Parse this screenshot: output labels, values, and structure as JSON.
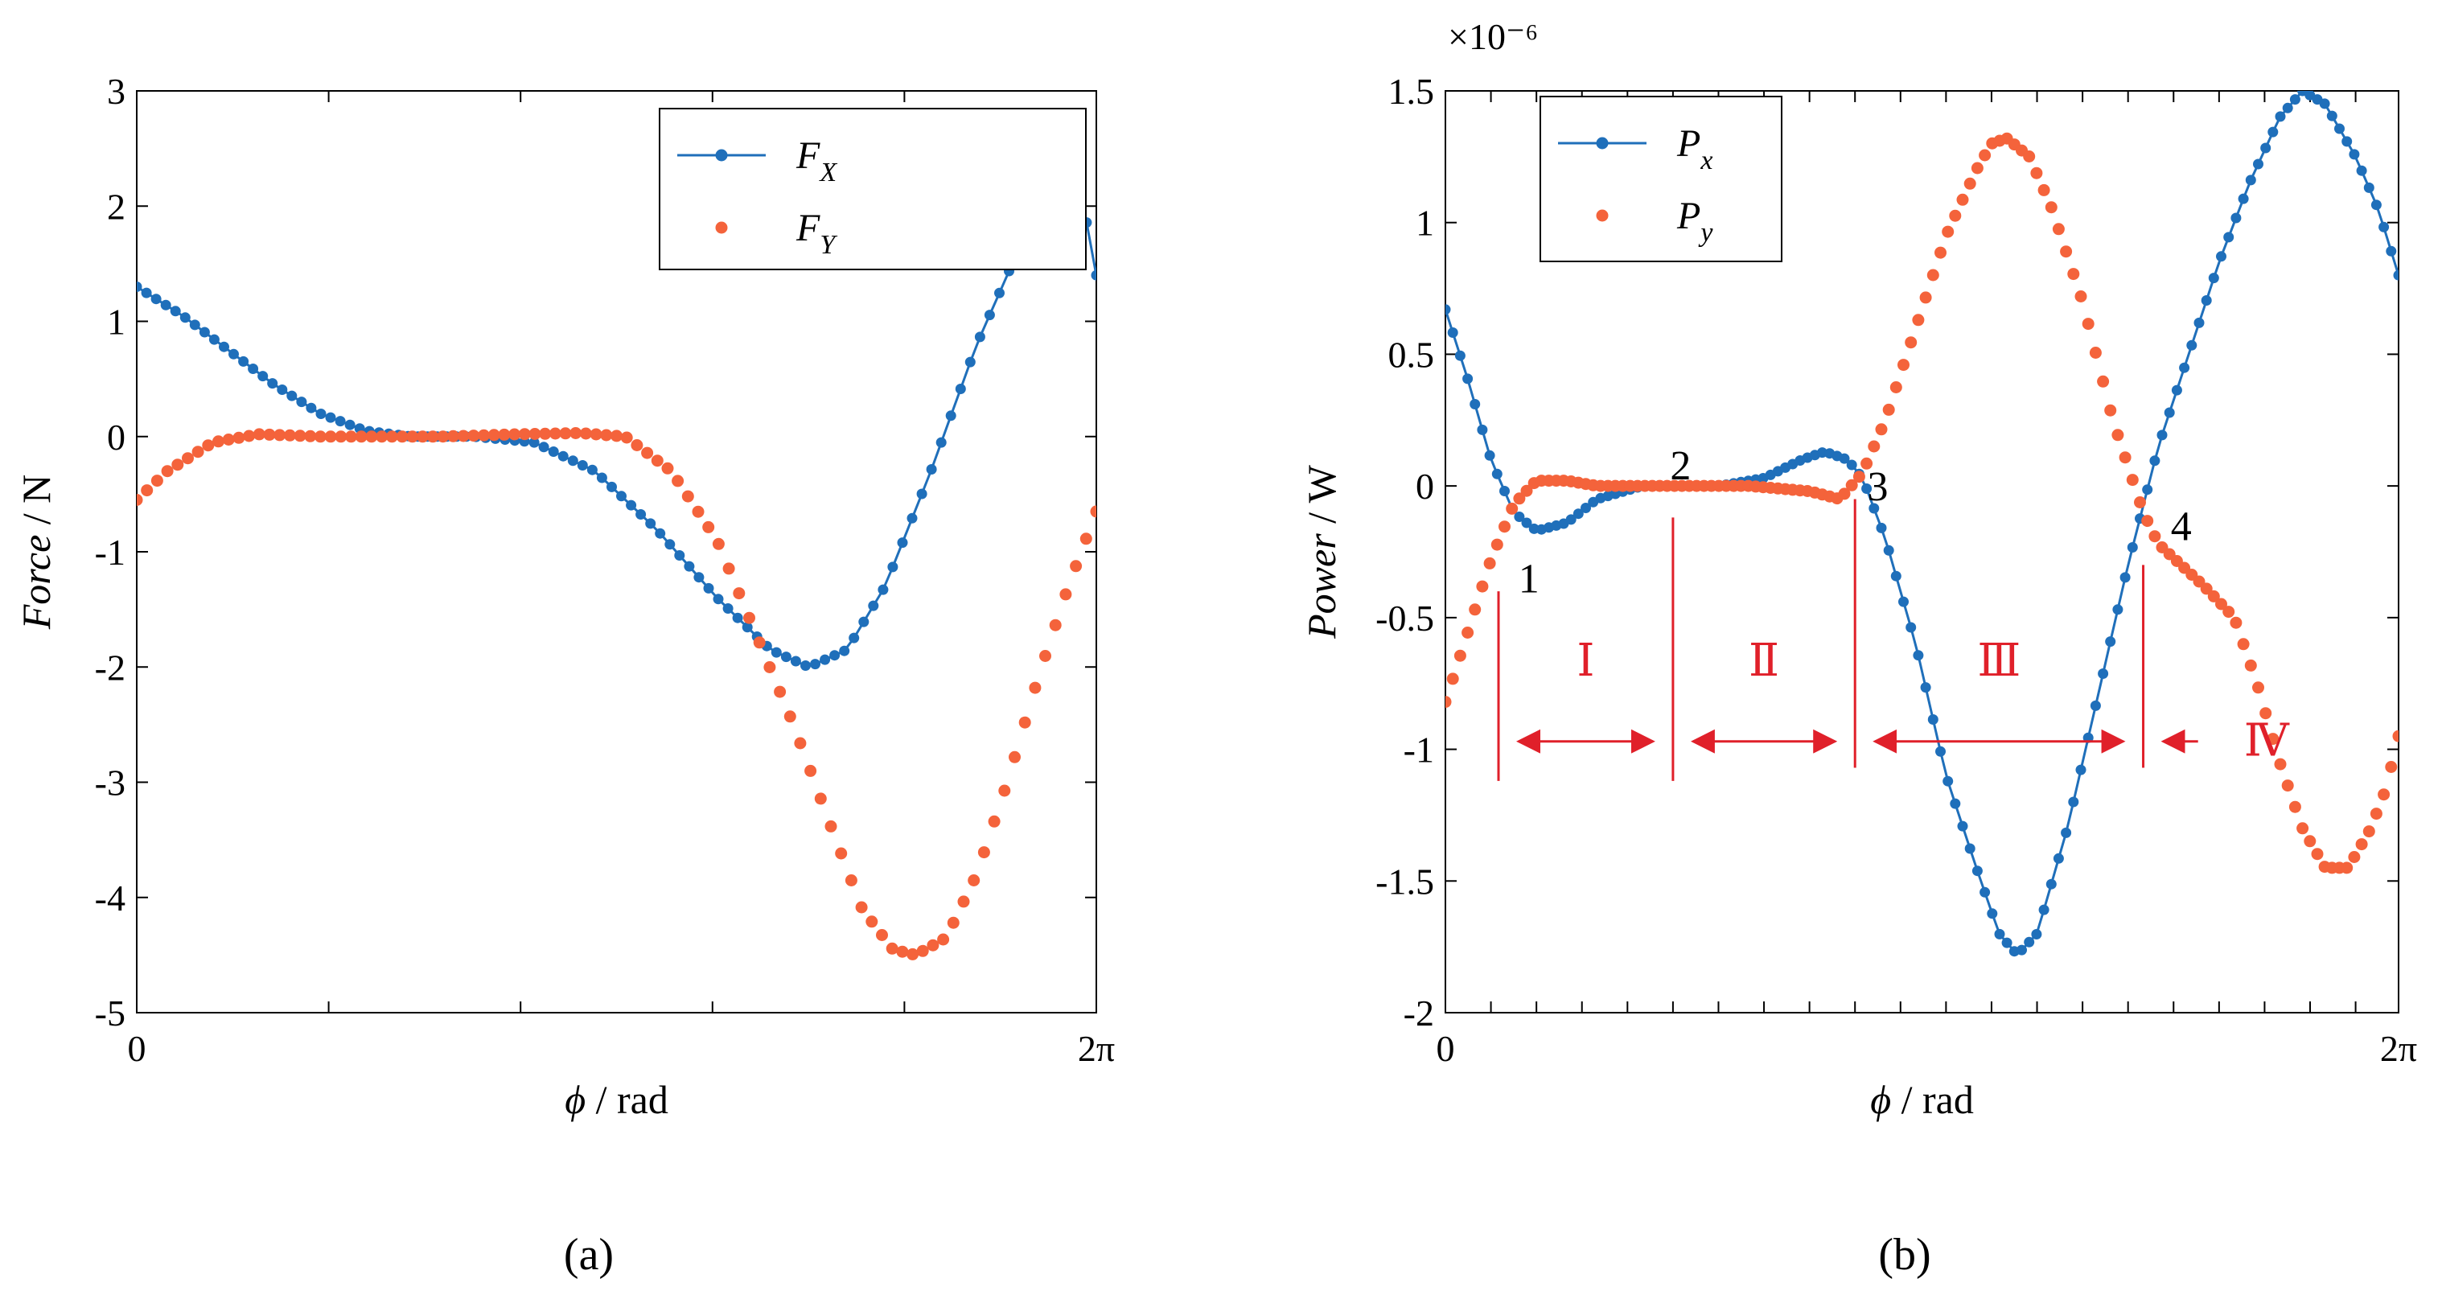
{
  "figure": {
    "panels": [
      "(a)",
      "(b)"
    ],
    "colors": {
      "series1": "#1f6fba",
      "series2": "#f4633b",
      "annotation": "#e0202a"
    }
  },
  "chart_data": [
    {
      "type": "line",
      "panel_label": "(a)",
      "title": "",
      "xlabel": {
        "symbol": "ϕ",
        "unit": "/ rad"
      },
      "ylabel": {
        "name": "Force",
        "unit": "/ N"
      },
      "xlim": [
        0,
        6.2832
      ],
      "ylim": [
        -5,
        3
      ],
      "xticks": [
        {
          "value": 0,
          "label": "0"
        },
        {
          "value": 6.2832,
          "label": "2π"
        }
      ],
      "xminor_ticks": [
        1.2566,
        2.5133,
        3.7699,
        5.0265
      ],
      "yticks": [
        {
          "value": 3,
          "label": "3"
        },
        {
          "value": 2,
          "label": "2"
        },
        {
          "value": 1,
          "label": "1"
        },
        {
          "value": 0,
          "label": "0"
        },
        {
          "value": -1,
          "label": "-1"
        },
        {
          "value": -2,
          "label": "-2"
        },
        {
          "value": -3,
          "label": "-3"
        },
        {
          "value": -4,
          "label": "-4"
        },
        {
          "value": -5,
          "label": "-5"
        }
      ],
      "legend": {
        "position": "top-right",
        "entries": [
          {
            "name": "F",
            "sub": "X"
          },
          {
            "name": "F",
            "sub": "Y"
          }
        ]
      },
      "series": [
        {
          "name": "F_X",
          "style": "line-markers",
          "color": "#1f6fba",
          "points": [
            [
              0,
              1.3
            ],
            [
              0.3,
              1.05
            ],
            [
              0.6,
              0.75
            ],
            [
              0.9,
              0.45
            ],
            [
              1.2,
              0.2
            ],
            [
              1.5,
              0.05
            ],
            [
              1.8,
              0.0
            ],
            [
              2.2,
              0.0
            ],
            [
              2.6,
              -0.05
            ],
            [
              3.0,
              -0.3
            ],
            [
              3.4,
              -0.8
            ],
            [
              3.8,
              -1.4
            ],
            [
              4.15,
              -1.85
            ],
            [
              4.4,
              -2.0
            ],
            [
              4.65,
              -1.85
            ],
            [
              4.9,
              -1.3
            ],
            [
              5.2,
              -0.3
            ],
            [
              5.5,
              0.8
            ],
            [
              5.8,
              1.7
            ],
            [
              6.0,
              2.05
            ],
            [
              6.2,
              2.0
            ],
            [
              6.2832,
              1.4
            ]
          ]
        },
        {
          "name": "F_Y",
          "style": "markers",
          "color": "#f4633b",
          "points": [
            [
              0,
              -0.55
            ],
            [
              0.2,
              -0.3
            ],
            [
              0.5,
              -0.05
            ],
            [
              0.8,
              0.02
            ],
            [
              1.2,
              0.0
            ],
            [
              2.0,
              0.0
            ],
            [
              2.5,
              0.02
            ],
            [
              2.9,
              0.03
            ],
            [
              3.2,
              0.0
            ],
            [
              3.5,
              -0.3
            ],
            [
              3.8,
              -0.9
            ],
            [
              4.05,
              -1.7
            ],
            [
              4.3,
              -2.5
            ],
            [
              4.55,
              -3.4
            ],
            [
              4.75,
              -4.1
            ],
            [
              4.95,
              -4.45
            ],
            [
              5.1,
              -4.5
            ],
            [
              5.3,
              -4.35
            ],
            [
              5.5,
              -3.8
            ],
            [
              5.7,
              -3.0
            ],
            [
              5.9,
              -2.1
            ],
            [
              6.1,
              -1.3
            ],
            [
              6.2832,
              -0.65
            ]
          ]
        }
      ]
    },
    {
      "type": "line",
      "panel_label": "(b)",
      "title": "",
      "axis_multiplier": "×10⁻⁶",
      "xlabel": {
        "symbol": "ϕ",
        "unit": "/ rad"
      },
      "ylabel": {
        "name": "Power",
        "unit": "/ W"
      },
      "xlim": [
        0,
        6.2832
      ],
      "ylim": [
        -2,
        1.5
      ],
      "xticks": [
        {
          "value": 0,
          "label": "0"
        },
        {
          "value": 6.2832,
          "label": "2π"
        }
      ],
      "xminor_ticks": [
        0.3,
        0.6,
        0.9,
        1.2,
        1.5,
        1.8,
        2.1,
        2.4,
        2.7,
        3.0,
        3.3,
        3.6,
        3.9,
        4.2,
        4.5,
        4.8,
        5.1,
        5.4,
        5.7,
        6.0
      ],
      "yticks": [
        {
          "value": 1.5,
          "label": "1.5"
        },
        {
          "value": 1,
          "label": "1"
        },
        {
          "value": 0.5,
          "label": "0.5"
        },
        {
          "value": 0,
          "label": "0"
        },
        {
          "value": -0.5,
          "label": "-0.5"
        },
        {
          "value": -1,
          "label": "-1"
        },
        {
          "value": -1.5,
          "label": "-1.5"
        },
        {
          "value": -2,
          "label": "-2"
        }
      ],
      "legend": {
        "position": "top-left",
        "entries": [
          {
            "name": "P",
            "sub": "x"
          },
          {
            "name": "P",
            "sub": "y"
          }
        ]
      },
      "series": [
        {
          "name": "P_x",
          "style": "line-markers",
          "color": "#1f6fba",
          "points": [
            [
              0,
              0.67
            ],
            [
              0.15,
              0.4
            ],
            [
              0.3,
              0.1
            ],
            [
              0.45,
              -0.1
            ],
            [
              0.6,
              -0.17
            ],
            [
              0.8,
              -0.14
            ],
            [
              1.0,
              -0.05
            ],
            [
              1.3,
              0.0
            ],
            [
              1.8,
              0.0
            ],
            [
              2.1,
              0.03
            ],
            [
              2.35,
              0.1
            ],
            [
              2.5,
              0.13
            ],
            [
              2.65,
              0.1
            ],
            [
              2.75,
              0.03
            ],
            [
              2.9,
              -0.2
            ],
            [
              3.1,
              -0.6
            ],
            [
              3.3,
              -1.1
            ],
            [
              3.5,
              -1.45
            ],
            [
              3.65,
              -1.7
            ],
            [
              3.77,
              -1.78
            ],
            [
              3.9,
              -1.7
            ],
            [
              4.1,
              -1.3
            ],
            [
              4.3,
              -0.8
            ],
            [
              4.5,
              -0.3
            ],
            [
              4.7,
              0.15
            ],
            [
              4.9,
              0.5
            ],
            [
              5.1,
              0.85
            ],
            [
              5.3,
              1.15
            ],
            [
              5.5,
              1.4
            ],
            [
              5.65,
              1.5
            ],
            [
              5.8,
              1.45
            ],
            [
              6.0,
              1.25
            ],
            [
              6.15,
              1.05
            ],
            [
              6.2832,
              0.8
            ]
          ]
        },
        {
          "name": "P_y",
          "style": "markers",
          "color": "#f4633b",
          "points": [
            [
              0,
              -0.82
            ],
            [
              0.15,
              -0.55
            ],
            [
              0.3,
              -0.28
            ],
            [
              0.45,
              -0.07
            ],
            [
              0.6,
              0.02
            ],
            [
              0.8,
              0.02
            ],
            [
              1.0,
              0.0
            ],
            [
              1.5,
              0.0
            ],
            [
              2.0,
              0.0
            ],
            [
              2.4,
              -0.02
            ],
            [
              2.6,
              -0.05
            ],
            [
              2.75,
              0.05
            ],
            [
              2.9,
              0.25
            ],
            [
              3.1,
              0.6
            ],
            [
              3.3,
              0.95
            ],
            [
              3.5,
              1.2
            ],
            [
              3.6,
              1.3
            ],
            [
              3.7,
              1.32
            ],
            [
              3.85,
              1.25
            ],
            [
              4.0,
              1.05
            ],
            [
              4.2,
              0.7
            ],
            [
              4.4,
              0.25
            ],
            [
              4.6,
              -0.1
            ],
            [
              4.7,
              -0.22
            ],
            [
              4.85,
              -0.3
            ],
            [
              5.0,
              -0.38
            ],
            [
              5.2,
              -0.5
            ],
            [
              5.35,
              -0.75
            ],
            [
              5.5,
              -1.05
            ],
            [
              5.65,
              -1.3
            ],
            [
              5.8,
              -1.45
            ],
            [
              5.95,
              -1.45
            ],
            [
              6.1,
              -1.3
            ],
            [
              6.2,
              -1.15
            ],
            [
              6.2832,
              -0.95
            ]
          ]
        }
      ],
      "annotations": {
        "points": [
          {
            "label": "1",
            "x": 0.55,
            "y": -0.35
          },
          {
            "label": "2",
            "x": 1.55,
            "y": 0.08
          },
          {
            "label": "3",
            "x": 2.85,
            "y": 0.0
          },
          {
            "label": "4",
            "x": 4.85,
            "y": -0.15
          }
        ],
        "boundaries": [
          0.35,
          1.5,
          2.7,
          4.6
        ],
        "regions": [
          {
            "label": "Ⅰ",
            "x_from": 0.35,
            "x_to": 1.5,
            "arrow": "both"
          },
          {
            "label": "Ⅱ",
            "x_from": 1.5,
            "x_to": 2.7,
            "arrow": "both"
          },
          {
            "label": "Ⅲ",
            "x_from": 2.7,
            "x_to": 4.6,
            "arrow": "both"
          },
          {
            "label": "Ⅳ",
            "x_from": 4.6,
            "x_to": 5.2,
            "arrow": "left"
          }
        ]
      }
    }
  ]
}
